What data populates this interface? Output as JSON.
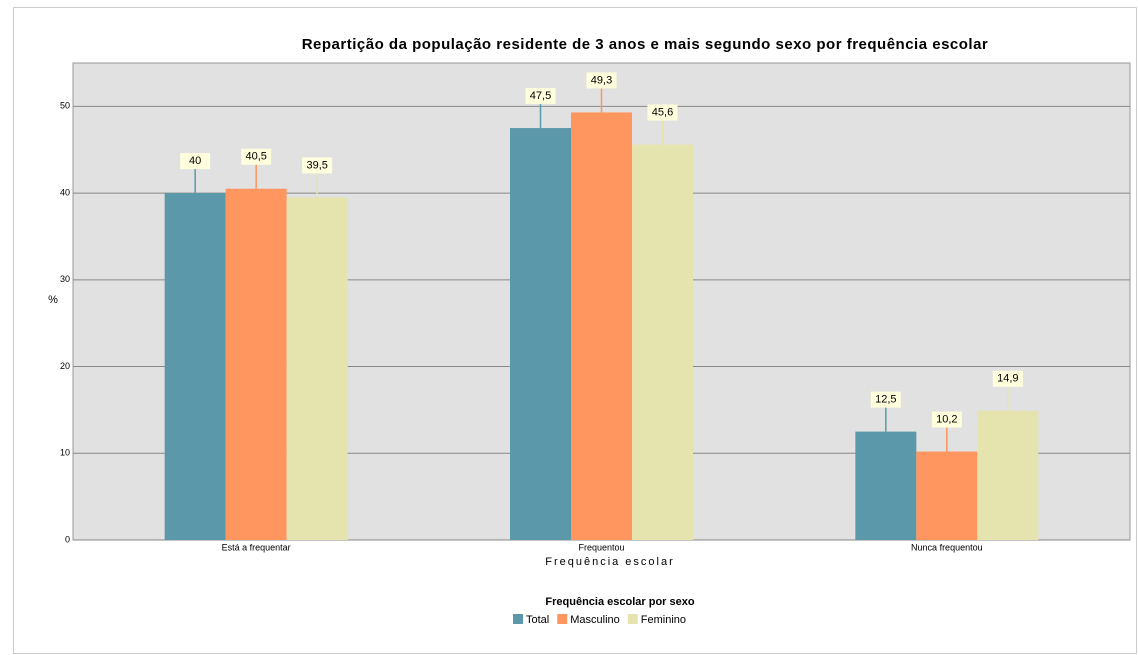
{
  "chart_data": {
    "type": "bar",
    "title": "Repartição da população residente de 3 anos e mais segundo sexo por frequência escolar",
    "x_label": "Frequência escolar",
    "y_label": "%",
    "legend_title": "Frequência escolar por sexo",
    "categories": [
      "Está a frequentar",
      "Frequentou",
      "Nunca frequentou"
    ],
    "series": [
      {
        "name": "Total",
        "color": "#5b99aa",
        "values": [
          40,
          47.5,
          12.5
        ],
        "value_labels": [
          "40",
          "47,5",
          "12,5"
        ]
      },
      {
        "name": "Masculino",
        "color": "#ff9660",
        "values": [
          40.5,
          49.3,
          10.2
        ],
        "value_labels": [
          "40,5",
          "49,3",
          "10,2"
        ]
      },
      {
        "name": "Feminino",
        "color": "#e6e4ae",
        "values": [
          39.5,
          45.6,
          14.9
        ],
        "value_labels": [
          "39,5",
          "45,6",
          "14,9"
        ]
      }
    ],
    "ylim": [
      0,
      55
    ],
    "yticks": [
      0,
      10,
      20,
      30,
      40,
      50
    ],
    "grid": true,
    "legend": "bottom"
  }
}
